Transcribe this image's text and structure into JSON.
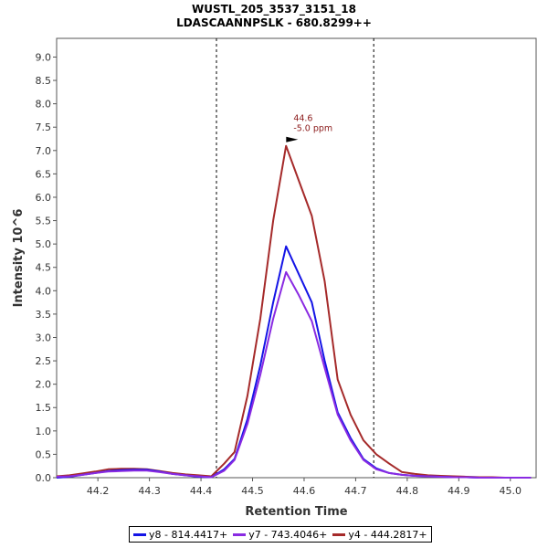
{
  "chart_data": {
    "type": "line",
    "title": "WUSTL_205_3537_3151_18",
    "subtitle": "LDASCAANNPSLK - 680.8299++",
    "xlabel": "Retention Time",
    "ylabel": "Intensity 10^6",
    "xlim": [
      44.12,
      45.05
    ],
    "ylim": [
      0,
      9.4
    ],
    "xticks": [
      "44.2",
      "44.3",
      "44.4",
      "44.5",
      "44.6",
      "44.7",
      "44.8",
      "44.9",
      "45.0"
    ],
    "xtick_values": [
      44.2,
      44.3,
      44.4,
      44.5,
      44.6,
      44.7,
      44.8,
      44.9,
      45.0
    ],
    "yticks": [
      "0.0",
      "0.5",
      "1.0",
      "1.5",
      "2.0",
      "2.5",
      "3.0",
      "3.5",
      "4.0",
      "4.5",
      "5.0",
      "5.5",
      "6.0",
      "6.5",
      "7.0",
      "7.5",
      "8.0",
      "8.5",
      "9.0"
    ],
    "ytick_values": [
      0,
      0.5,
      1,
      1.5,
      2,
      2.5,
      3,
      3.5,
      4,
      4.5,
      5,
      5.5,
      6,
      6.5,
      7,
      7.5,
      8,
      8.5,
      9
    ],
    "vlines": [
      44.43,
      44.735
    ],
    "x": [
      44.12,
      44.145,
      44.17,
      44.195,
      44.22,
      44.245,
      44.27,
      44.295,
      44.32,
      44.345,
      44.37,
      44.395,
      44.42,
      44.445,
      44.465,
      44.49,
      44.515,
      44.54,
      44.565,
      44.59,
      44.615,
      44.64,
      44.665,
      44.69,
      44.715,
      44.74,
      44.765,
      44.79,
      44.815,
      44.84,
      44.865,
      44.89,
      44.915,
      44.94,
      44.965,
      44.99,
      45.015,
      45.04
    ],
    "series": [
      {
        "name": "y8 - 814.4417+",
        "color": "#1414e6",
        "values": [
          0.0,
          0.02,
          0.06,
          0.1,
          0.14,
          0.16,
          0.17,
          0.17,
          0.13,
          0.08,
          0.05,
          0.02,
          0.01,
          0.18,
          0.4,
          1.25,
          2.4,
          3.75,
          4.95,
          4.35,
          3.75,
          2.5,
          1.4,
          0.85,
          0.4,
          0.2,
          0.1,
          0.06,
          0.04,
          0.03,
          0.02,
          0.01,
          0.01,
          0.0,
          0.0,
          0.0,
          0.0,
          0.0
        ]
      },
      {
        "name": "y7 - 743.4046+",
        "color": "#8a2be2",
        "values": [
          0.02,
          0.03,
          0.06,
          0.1,
          0.13,
          0.14,
          0.15,
          0.15,
          0.12,
          0.08,
          0.05,
          0.03,
          0.01,
          0.15,
          0.38,
          1.15,
          2.2,
          3.4,
          4.4,
          3.9,
          3.35,
          2.35,
          1.35,
          0.8,
          0.38,
          0.18,
          0.1,
          0.06,
          0.04,
          0.03,
          0.02,
          0.01,
          0.01,
          0.0,
          0.0,
          0.0,
          0.0,
          0.0
        ]
      },
      {
        "name": "y4 - 444.2817+",
        "color": "#a52a2a",
        "values": [
          0.03,
          0.05,
          0.09,
          0.13,
          0.18,
          0.19,
          0.19,
          0.18,
          0.14,
          0.1,
          0.07,
          0.05,
          0.03,
          0.3,
          0.55,
          1.75,
          3.4,
          5.5,
          7.1,
          6.35,
          5.6,
          4.2,
          2.1,
          1.35,
          0.8,
          0.5,
          0.3,
          0.12,
          0.08,
          0.05,
          0.04,
          0.03,
          0.02,
          0.01,
          0.01,
          0.0,
          0.0,
          0.0
        ]
      }
    ],
    "annotation": {
      "x": 44.59,
      "y": 7.1,
      "line1": "44.6",
      "line2": "-5.0 ppm",
      "color": "#8b1a1a"
    },
    "legend_position": "bottom-center"
  }
}
